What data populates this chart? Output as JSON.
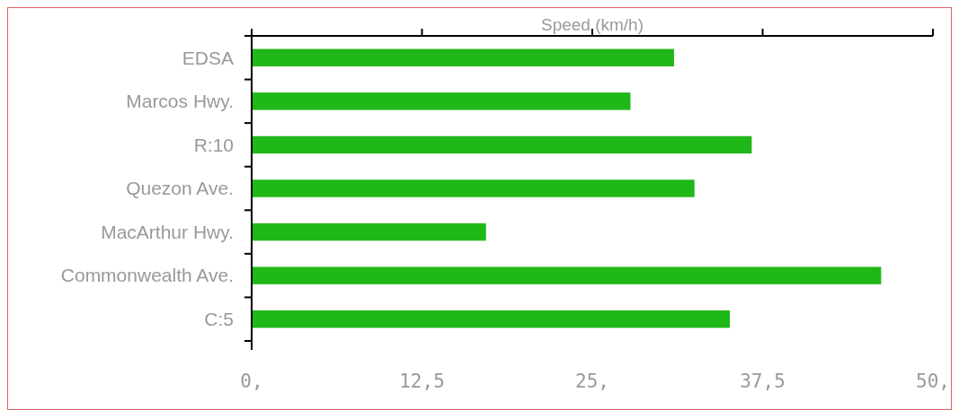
{
  "chart_data": {
    "type": "bar",
    "orientation": "horizontal",
    "xlabel": "Speed (km/h)",
    "categories": [
      "EDSA",
      "Marcos Hwy.",
      "R:10",
      "Quezon Ave.",
      "MacArthur Hwy.",
      "Commonwealth Ave.",
      "C:5"
    ],
    "values": [
      31.0,
      27.8,
      36.7,
      32.5,
      17.2,
      46.2,
      35.1
    ],
    "color": "#20b818",
    "xlim": [
      0,
      50
    ],
    "xticks": [
      {
        "value": 0,
        "label": "0,"
      },
      {
        "value": 12.5,
        "label": "12,5"
      },
      {
        "value": 25,
        "label": "25,"
      },
      {
        "value": 37.5,
        "label": "37,5"
      },
      {
        "value": 50,
        "label": "50,"
      }
    ],
    "grid": false
  }
}
